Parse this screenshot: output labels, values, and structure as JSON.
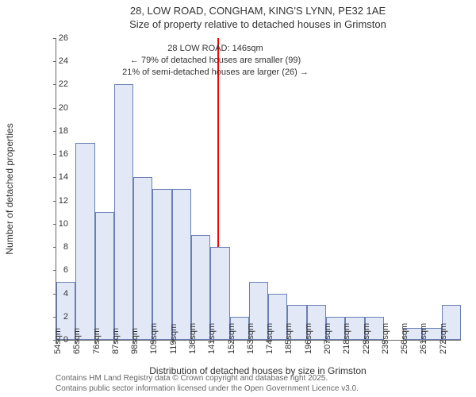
{
  "title_line1": "28, LOW ROAD, CONGHAM, KING'S LYNN, PE32 1AE",
  "title_line2": "Size of property relative to detached houses in Grimston",
  "y_axis_label": "Number of detached properties",
  "x_axis_label": "Distribution of detached houses by size in Grimston",
  "footer_line1": "Contains HM Land Registry data © Crown copyright and database right 2025.",
  "footer_line2": "Contains public sector information licensed under the Open Government Licence v3.0.",
  "annotation": {
    "line1": "28 LOW ROAD: 146sqm",
    "line2": "← 79% of detached houses are smaller (99)",
    "line3": "21% of semi-detached houses are larger (26) →"
  },
  "chart": {
    "type": "histogram",
    "ylim": [
      0,
      26
    ],
    "ytick_step": 2,
    "background_color": "#ffffff",
    "bar_fill": "#e2e8f6",
    "bar_border": "#6a7fb5",
    "axis_color": "#666666",
    "vline_color": "#ff0000",
    "vline_x_value": 146,
    "x_start": 54,
    "x_bin_width": 11,
    "categories": [
      "54sqm",
      "65sqm",
      "76sqm",
      "87sqm",
      "98sqm",
      "109sqm",
      "119sqm",
      "130sqm",
      "141sqm",
      "152sqm",
      "163sqm",
      "174sqm",
      "185sqm",
      "196sqm",
      "207sqm",
      "218sqm",
      "229sqm",
      "239sqm",
      "250sqm",
      "261sqm",
      "272sqm"
    ],
    "values": [
      5,
      17,
      11,
      22,
      14,
      13,
      13,
      9,
      8,
      2,
      5,
      4,
      3,
      3,
      2,
      2,
      2,
      0,
      1,
      1,
      3
    ],
    "title_fontsize": 13,
    "label_fontsize": 12,
    "tick_fontsize": 11
  }
}
